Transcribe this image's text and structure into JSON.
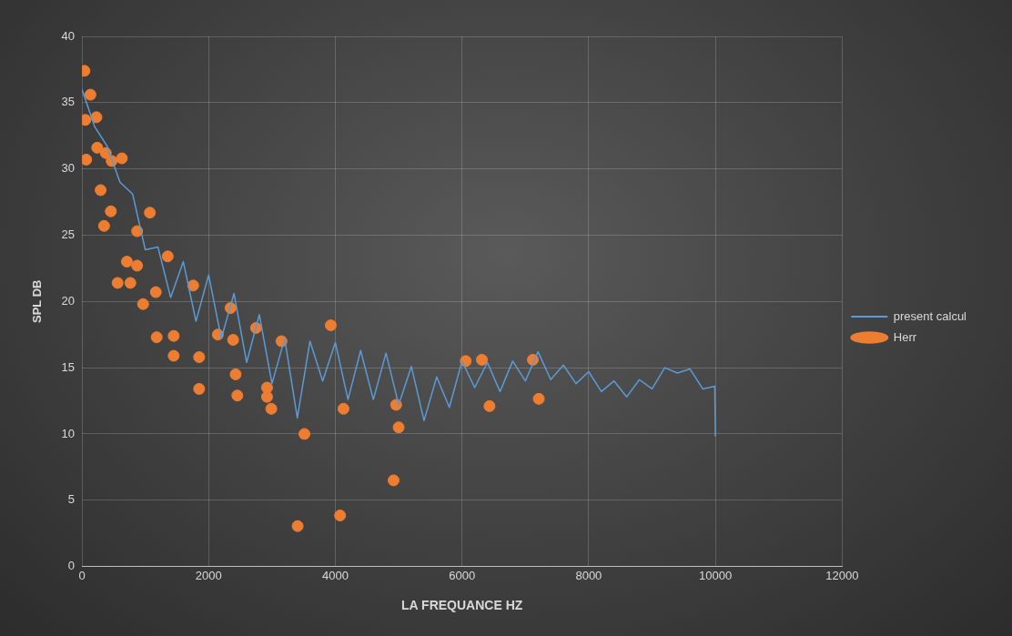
{
  "chart_data": {
    "type": "scatter",
    "xlabel": "LA FREQUANCE HZ",
    "ylabel": "SPL DB",
    "xlim": [
      0,
      12000
    ],
    "xticks": [
      0,
      2000,
      4000,
      6000,
      8000,
      10000,
      12000
    ],
    "ylim": [
      0,
      40
    ],
    "yticks": [
      0,
      5,
      10,
      15,
      20,
      25,
      30,
      35,
      40
    ],
    "grid": true,
    "legend": "right",
    "series": [
      {
        "name": "present calcul",
        "type": "line",
        "color": "#5b9bd5",
        "marker": "none",
        "line_style": "solid",
        "x": [
          0,
          200,
          400,
          600,
          800,
          1000,
          1200,
          1400,
          1600,
          1800,
          2000,
          2200,
          2400,
          2600,
          2800,
          3000,
          3200,
          3400,
          3600,
          3800,
          4000,
          4200,
          4400,
          4600,
          4800,
          5000,
          5200,
          5400,
          5600,
          5800,
          6000,
          6200,
          6400,
          6600,
          6800,
          7000,
          7200,
          7400,
          7600,
          7800,
          8000,
          8200,
          8400,
          8600,
          8800,
          9000,
          9200,
          9400,
          9600,
          9800,
          9990,
          10000
        ],
        "values": [
          36,
          33.2,
          31.7,
          29.0,
          28.1,
          23.9,
          24.1,
          20.3,
          23.0,
          18.5,
          22.0,
          17.2,
          20.6,
          15.4,
          19.0,
          13.8,
          17.2,
          11.2,
          17.0,
          14.0,
          16.9,
          12.6,
          16.3,
          12.6,
          16.1,
          12.2,
          15.1,
          11.0,
          14.3,
          12.0,
          15.5,
          13.5,
          15.4,
          13.2,
          15.5,
          14.0,
          16.2,
          14.1,
          15.2,
          13.8,
          14.7,
          13.2,
          14.0,
          12.8,
          14.1,
          13.4,
          15.0,
          14.6,
          14.9,
          13.4,
          13.6,
          9.8
        ]
      },
      {
        "name": "Herr",
        "type": "scatter",
        "color": "#ed7d31",
        "marker": "circle",
        "x": [
          40,
          134,
          54,
          228,
          67,
          241,
          376,
          469,
          630,
          295,
          456,
          349,
          1072,
          871,
          710,
          871,
          563,
          764,
          965,
          1166,
          1354,
          1756,
          1180,
          1448,
          1448,
          1850,
          1850,
          2145,
          2346,
          2386,
          2426,
          2453,
          2748,
          3150,
          2922,
          2922,
          2989,
          3512,
          3405,
          3928,
          4129,
          4075,
          4960,
          5000,
          4920,
          6059,
          6314,
          6434,
          7118,
          7212
        ],
        "values": [
          37.4,
          35.6,
          33.7,
          33.9,
          30.7,
          31.6,
          31.2,
          30.6,
          30.8,
          28.4,
          26.8,
          25.7,
          26.7,
          25.3,
          23.0,
          22.7,
          21.4,
          21.4,
          19.8,
          20.7,
          23.4,
          21.2,
          17.3,
          17.4,
          15.9,
          15.8,
          13.4,
          17.5,
          19.5,
          17.1,
          14.5,
          12.9,
          18.0,
          17.0,
          13.5,
          12.8,
          11.9,
          10.0,
          3.05,
          18.2,
          11.9,
          3.85,
          12.2,
          10.5,
          6.5,
          15.5,
          15.6,
          12.1,
          15.6,
          12.65
        ]
      }
    ]
  }
}
